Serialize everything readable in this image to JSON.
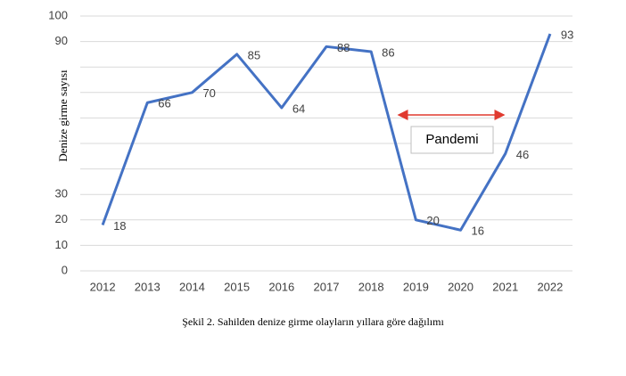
{
  "chart_data": {
    "type": "line",
    "y_label": "Denize girme sayısı",
    "caption": "Şekil 2. Sahilden denize girme olayların yıllara göre dağılımı",
    "annotation": "Pandemi",
    "categories": [
      "2012",
      "2013",
      "2014",
      "2015",
      "2016",
      "2017",
      "2018",
      "2019",
      "2020",
      "2021",
      "2022"
    ],
    "series": [
      {
        "name": "Denize girme sayısı",
        "color": "#4472c4",
        "values": [
          18,
          66,
          70,
          85,
          64,
          88,
          86,
          20,
          16,
          46,
          93
        ]
      }
    ],
    "ylim": [
      0,
      100
    ],
    "yticks": [
      0,
      10,
      20,
      30,
      {
        "value": 40,
        "label": null
      },
      {
        "value": 50,
        "label": null
      },
      {
        "value": 60,
        "label": null
      },
      {
        "value": 70,
        "label": null
      },
      {
        "value": 80,
        "label": null
      },
      90,
      100
    ],
    "grid": true,
    "arrow_color": "#e03a2f"
  }
}
